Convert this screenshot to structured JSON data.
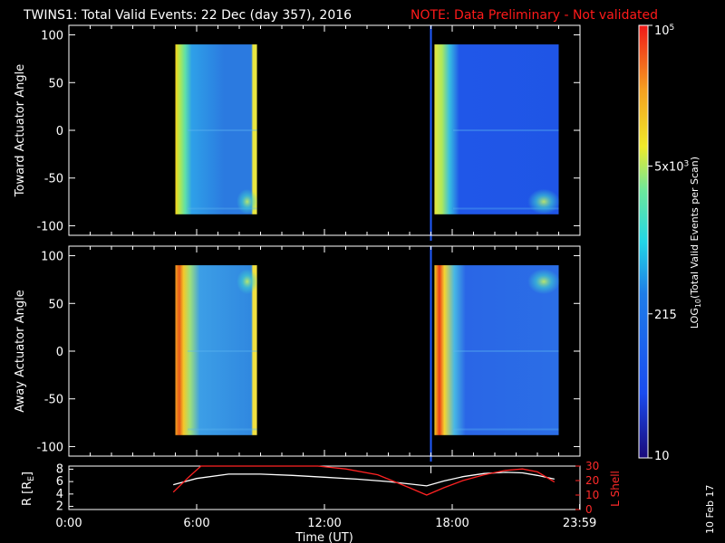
{
  "colors": {
    "background": "#000000",
    "axes": "#ffffff",
    "marker_line": "#1f5bff",
    "r_line": "#ffffff",
    "lshell_line": "#ff2222",
    "note": "#ff1a1a"
  },
  "header": {
    "title": "TWINS1: Total Valid Events: 22 Dec (day 357), 2016",
    "note": "NOTE: Data Preliminary - Not validated"
  },
  "footer": {
    "date_stamp": "10 Feb 17"
  },
  "chart_data": [
    {
      "type": "heatmap",
      "panel": "toward",
      "ylabel": "Toward Actuator Angle",
      "ylim": [
        -110,
        110
      ],
      "yticks": [
        100,
        50,
        0,
        -50,
        -100
      ],
      "xlim_hours": [
        0,
        24
      ],
      "data_blocks": [
        {
          "start_time": "05:00",
          "end_time": "08:50",
          "angle_range": [
            -88,
            90
          ]
        },
        {
          "start_time": "17:10",
          "end_time": "23:00",
          "angle_range": [
            -88,
            90
          ]
        }
      ],
      "marker_time": "17:00"
    },
    {
      "type": "heatmap",
      "panel": "away",
      "ylabel": "Away Actuator Angle",
      "ylim": [
        -110,
        110
      ],
      "yticks": [
        100,
        50,
        0,
        -50,
        -100
      ],
      "xlim_hours": [
        0,
        24
      ],
      "data_blocks": [
        {
          "start_time": "05:00",
          "end_time": "08:50",
          "angle_range": [
            -88,
            90
          ]
        },
        {
          "start_time": "17:10",
          "end_time": "23:00",
          "angle_range": [
            -88,
            90
          ]
        }
      ],
      "marker_time": "17:00"
    },
    {
      "type": "line",
      "panel": "orbit",
      "ylabel_left": "R [R",
      "ylabel_left_sub": "E",
      "ylabel_left_end": "]",
      "ylabel_right": "L Shell",
      "xlabel": "Time (UT)",
      "xticks": [
        "0:00",
        "6:00",
        "12:00",
        "18:00",
        "23:59"
      ],
      "xtick_hours": [
        0,
        6,
        12,
        18,
        23.983
      ],
      "yticks_left": [
        8,
        6,
        4,
        2
      ],
      "ylim_left": [
        1.5,
        8.5
      ],
      "yticks_right": [
        30,
        20,
        10,
        0
      ],
      "ylim_right": [
        0,
        30
      ],
      "series": [
        {
          "axis": "left",
          "x_hours": [
            4.9,
            6.0,
            7.5,
            9.0,
            10.5,
            12.0,
            13.5,
            15.0,
            16.8,
            17.6,
            18.5,
            19.5,
            20.5,
            21.3,
            22.0,
            22.8
          ],
          "values": [
            5.5,
            6.5,
            7.2,
            7.2,
            7.0,
            6.7,
            6.4,
            6.0,
            5.3,
            6.1,
            6.8,
            7.3,
            7.5,
            7.4,
            7.0,
            6.4
          ]
        },
        {
          "axis": "right",
          "x_hours": [
            4.9,
            5.6,
            6.2,
            11.7,
            13.0,
            14.5,
            16.0,
            16.8,
            17.6,
            18.5,
            19.5,
            20.5,
            21.3,
            22.0,
            22.8
          ],
          "values": [
            12,
            22,
            31,
            31,
            28,
            24,
            15,
            10,
            15,
            20,
            24,
            27,
            28,
            26,
            19
          ]
        }
      ]
    }
  ],
  "colorbar": {
    "label": "LOG",
    "label_sub": "10",
    "label_end": "(Total Valid Events per Scan)",
    "ticks": [
      {
        "base": "10",
        "exp": "5",
        "value": 100000
      },
      {
        "base": "5x10",
        "exp": "3",
        "value": 5000
      },
      {
        "base": "215",
        "exp": "",
        "value": 215
      },
      {
        "base": "10",
        "exp": "",
        "value": 10
      }
    ],
    "range": [
      10,
      100000
    ]
  }
}
